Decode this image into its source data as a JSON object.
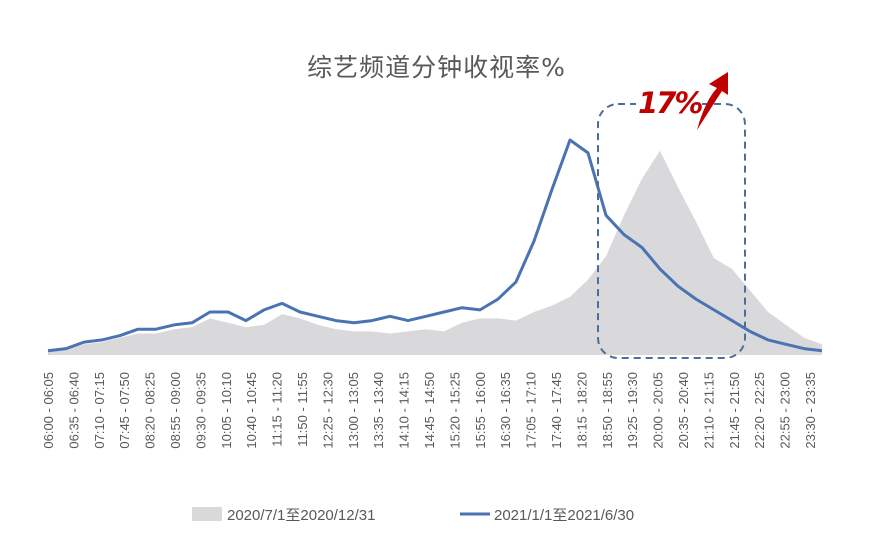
{
  "chart_data": {
    "type": "area",
    "title": "综艺频道分钟收视率%",
    "xlabel": "",
    "ylabel": "",
    "ylim": [
      0,
      1
    ],
    "grid": false,
    "legend_position": "bottom",
    "x_tick_labels": [
      "06:00 - 06:05",
      "06:35 - 06:40",
      "07:10 - 07:15",
      "07:45 - 07:50",
      "08:20 - 08:25",
      "08:55 - 09:00",
      "09:30 - 09:35",
      "10:05 - 10:10",
      "10:40 - 10:45",
      "11:15 - 11:20",
      "11:50 - 11:55",
      "12:25 - 12:30",
      "13:00 - 13:05",
      "13:35 - 13:40",
      "14:10 - 14:15",
      "14:45 - 14:50",
      "15:20 - 15:25",
      "15:55 - 16:00",
      "16:30 - 16:35",
      "17:05 - 17:10",
      "17:40 - 17:45",
      "18:15 - 18:20",
      "18:50 - 18:55",
      "19:25 - 19:30",
      "20:00 - 20:05",
      "20:35 - 20:40",
      "21:10 - 21:15",
      "21:45 - 21:50",
      "22:20 - 22:25",
      "22:55 - 23:00",
      "23:30 - 23:35"
    ],
    "series": [
      {
        "name": "2020/7/1至2020/12/31",
        "style": "area",
        "color": "#d9d9dc",
        "values": [
          0.02,
          0.03,
          0.05,
          0.06,
          0.08,
          0.1,
          0.1,
          0.12,
          0.13,
          0.17,
          0.15,
          0.13,
          0.14,
          0.19,
          0.17,
          0.14,
          0.12,
          0.11,
          0.11,
          0.1,
          0.11,
          0.12,
          0.11,
          0.15,
          0.17,
          0.17,
          0.16,
          0.2,
          0.23,
          0.27,
          0.35,
          0.46,
          0.65,
          0.82,
          0.95,
          0.78,
          0.62,
          0.45,
          0.4,
          0.3,
          0.2,
          0.14,
          0.08,
          0.05
        ]
      },
      {
        "name": "2021/1/1至2021/6/30",
        "style": "line",
        "color": "#4a73b4",
        "values": [
          0.02,
          0.03,
          0.06,
          0.07,
          0.09,
          0.12,
          0.12,
          0.14,
          0.15,
          0.2,
          0.2,
          0.16,
          0.21,
          0.24,
          0.2,
          0.18,
          0.16,
          0.15,
          0.16,
          0.18,
          0.16,
          0.18,
          0.2,
          0.22,
          0.21,
          0.26,
          0.34,
          0.53,
          0.77,
          1.0,
          0.94,
          0.65,
          0.56,
          0.5,
          0.4,
          0.32,
          0.26,
          0.21,
          0.16,
          0.11,
          0.07,
          0.05,
          0.03,
          0.02
        ]
      }
    ],
    "annotations": [
      {
        "text": "17%",
        "color": "#c00000",
        "shape": "dashed-rounded-box",
        "box_color": "#4a6f9a",
        "arrow": "up-right"
      }
    ]
  }
}
